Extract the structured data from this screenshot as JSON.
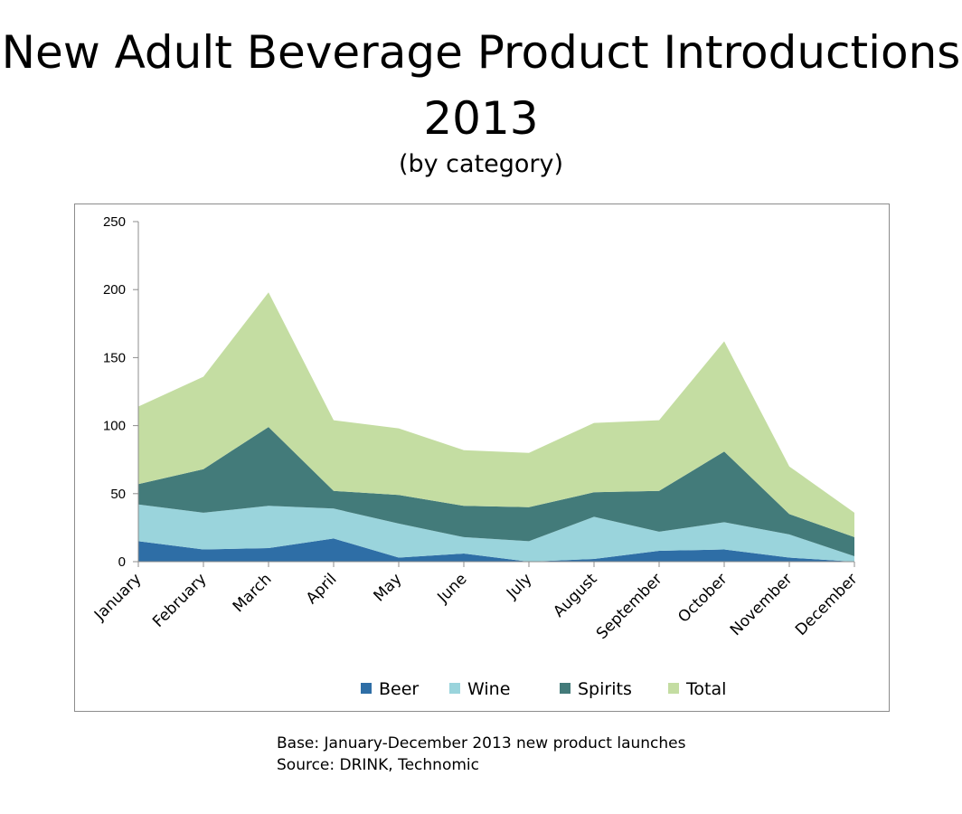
{
  "header": {
    "title_line1": "New Adult Beverage Product Introductions",
    "title_line2": "2013",
    "subtitle": "(by category)"
  },
  "footer": {
    "base": "Base: January-December 2013 new product launches",
    "source": "Source: DRINK, Technomic"
  },
  "chart_data": {
    "type": "area",
    "stacked": true,
    "categories": [
      "January",
      "February",
      "March",
      "April",
      "May",
      "June",
      "July",
      "August",
      "September",
      "October",
      "November",
      "December"
    ],
    "series": [
      {
        "name": "Beer",
        "color": "#2e6ea6",
        "values": [
          15,
          9,
          10,
          17,
          3,
          6,
          0,
          2,
          8,
          9,
          3,
          0
        ]
      },
      {
        "name": "Wine",
        "color": "#9ad4dc",
        "values": [
          27,
          27,
          31,
          22,
          25,
          12,
          15,
          31,
          14,
          20,
          17,
          4
        ]
      },
      {
        "name": "Spirits",
        "color": "#437b7a",
        "values": [
          15,
          32,
          58,
          13,
          21,
          23,
          25,
          18,
          30,
          52,
          15,
          14
        ]
      },
      {
        "name": "Total",
        "color": "#c4dda2",
        "values": [
          57,
          68,
          99,
          52,
          49,
          41,
          40,
          51,
          52,
          81,
          35,
          18
        ]
      }
    ],
    "yticks": [
      0,
      50,
      100,
      150,
      200,
      250
    ],
    "ylim": [
      0,
      250
    ],
    "legend": "bottom",
    "grid": false
  }
}
